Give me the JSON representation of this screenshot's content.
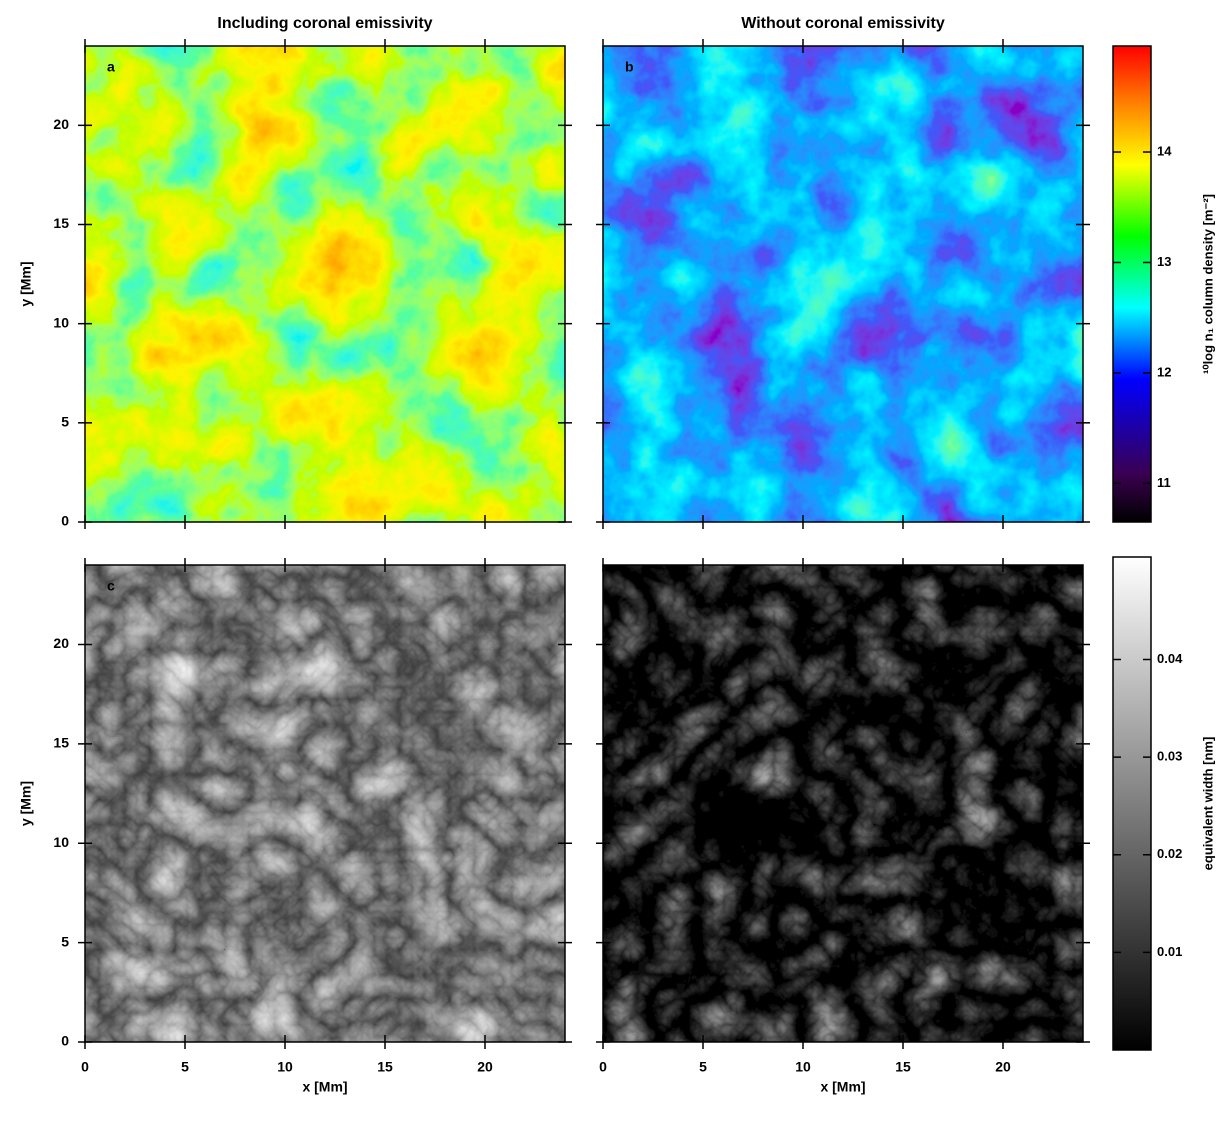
{
  "chart_data": [
    {
      "type": "heatmap",
      "title": "Including coronal emissivity",
      "panel_label": "a",
      "colormap": "rainbow",
      "xlim": [
        0,
        24
      ],
      "ylim": [
        0,
        24
      ],
      "xticks": [
        0,
        5,
        10,
        15,
        20
      ],
      "yticks": [
        0,
        5,
        10,
        15,
        20
      ],
      "show_xtick_labels": false,
      "show_ytick_labels": true,
      "ylabel": "y [Mm]"
    },
    {
      "type": "heatmap",
      "title": "Without coronal emissivity",
      "panel_label": "b",
      "colormap": "rainbow-dark",
      "xlim": [
        0,
        24
      ],
      "ylim": [
        0,
        24
      ],
      "xticks": [
        0,
        5,
        10,
        15,
        20
      ],
      "yticks": [
        0,
        5,
        10,
        15,
        20
      ],
      "show_xtick_labels": false,
      "show_ytick_labels": false
    },
    {
      "type": "heatmap",
      "panel_label": "c",
      "colormap": "gray",
      "xlim": [
        0,
        24
      ],
      "ylim": [
        0,
        24
      ],
      "xticks": [
        0,
        5,
        10,
        15,
        20
      ],
      "yticks": [
        0,
        5,
        10,
        15,
        20
      ],
      "show_xtick_labels": true,
      "show_ytick_labels": true,
      "xlabel": "x [Mm]",
      "ylabel": "y [Mm]"
    },
    {
      "type": "heatmap",
      "colormap": "gray-dark",
      "xlim": [
        0,
        24
      ],
      "ylim": [
        0,
        24
      ],
      "xticks": [
        0,
        5,
        10,
        15,
        20
      ],
      "yticks": [
        0,
        5,
        10,
        15,
        20
      ],
      "show_xtick_labels": true,
      "show_ytick_labels": false,
      "xlabel": "x [Mm]"
    }
  ],
  "colorbars": [
    {
      "label": "¹⁰log n₁ column density [m⁻²]",
      "colormap": "rainbow",
      "lim": [
        10.65,
        14.96
      ],
      "ticks": [
        11,
        12,
        13,
        14
      ]
    },
    {
      "label": "equivalent width [nm]",
      "colormap": "gray",
      "lim": [
        0,
        0.0505
      ],
      "ticks": [
        0.01,
        0.02,
        0.03,
        0.04
      ]
    }
  ]
}
